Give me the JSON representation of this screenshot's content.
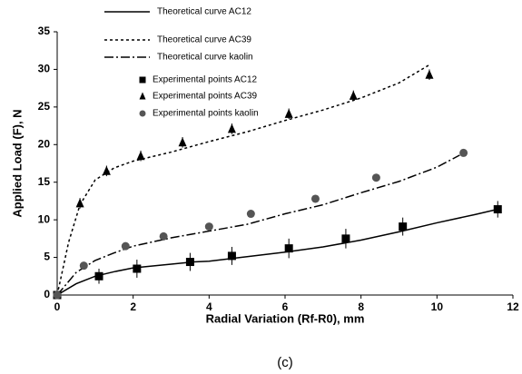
{
  "chart_data": {
    "type": "line",
    "xlabel": "Radial Variation (Rf-R0), mm",
    "ylabel": "Applied Load (F), N",
    "caption": "(c)",
    "xlim": [
      0,
      12
    ],
    "xticks": [
      0,
      2,
      4,
      6,
      8,
      10,
      12
    ],
    "ylim": [
      0,
      35
    ],
    "yticks": [
      0,
      5,
      10,
      15,
      20,
      25,
      30,
      35
    ],
    "grid": false,
    "legend": "upper left",
    "series": [
      {
        "name": "Theoretical curve AC12",
        "type": "line",
        "dash": "solid",
        "color": "#000000",
        "x": [
          0,
          0.5,
          1,
          1.5,
          2,
          3,
          3.6,
          4,
          4.5,
          5,
          6,
          7,
          8,
          9,
          10,
          11,
          11.6
        ],
        "values": [
          0,
          1.5,
          2.5,
          3.1,
          3.6,
          4.1,
          4.4,
          4.5,
          4.8,
          5.1,
          5.7,
          6.4,
          7.3,
          8.4,
          9.6,
          10.7,
          11.4
        ]
      },
      {
        "name": "Theoretical curve AC39",
        "type": "line",
        "dash": "dotted",
        "color": "#000000",
        "x": [
          0,
          0.3,
          0.6,
          1,
          1.5,
          2,
          3,
          4,
          5,
          6,
          7,
          8,
          9,
          9.8
        ],
        "values": [
          0,
          7,
          12,
          15.3,
          16.9,
          17.8,
          19,
          20.4,
          21.7,
          23.2,
          24.6,
          26.2,
          28.2,
          30.6
        ]
      },
      {
        "name": "Theoretical curve kaolin",
        "type": "line",
        "dash": "dashdot",
        "color": "#000000",
        "x": [
          0,
          0.5,
          1,
          1.5,
          2,
          3,
          4,
          5,
          6,
          7,
          8,
          9,
          10,
          10.6
        ],
        "values": [
          0,
          3,
          4.6,
          5.6,
          6.5,
          7.6,
          8.5,
          9.4,
          10.8,
          12,
          13.6,
          15.1,
          17,
          18.6
        ]
      },
      {
        "name": "Experimental points AC12",
        "type": "scatter",
        "marker": "square",
        "color": "#000000",
        "x": [
          0,
          1.1,
          2.1,
          3.5,
          4.6,
          6.1,
          7.6,
          9.1,
          11.6
        ],
        "values": [
          0,
          2.5,
          3.5,
          4.4,
          5.2,
          6.2,
          7.5,
          9.1,
          11.4
        ],
        "errors": [
          0,
          1,
          1.2,
          1.2,
          1.2,
          1.3,
          1.3,
          1.2,
          1.1
        ]
      },
      {
        "name": "Experimental points AC39",
        "type": "scatter",
        "marker": "triangle",
        "color": "#000000",
        "x": [
          0,
          0.6,
          1.3,
          2.2,
          3.3,
          4.6,
          6.1,
          7.8,
          9.8
        ],
        "values": [
          0,
          12.2,
          16.5,
          18.5,
          20.3,
          22.1,
          24.1,
          26.5,
          29.3
        ],
        "errors": [
          0,
          0.7,
          0.7,
          0.7,
          0.7,
          0.7,
          0.7,
          0.7,
          0.7
        ]
      },
      {
        "name": "Experimental points kaolin",
        "type": "scatter",
        "marker": "circle",
        "color": "#555555",
        "x": [
          0,
          0.7,
          1.8,
          2.8,
          4,
          5.1,
          6.8,
          8.4,
          10.7
        ],
        "values": [
          0,
          3.9,
          6.5,
          7.8,
          9.1,
          10.8,
          12.8,
          15.6,
          18.9
        ]
      }
    ]
  }
}
